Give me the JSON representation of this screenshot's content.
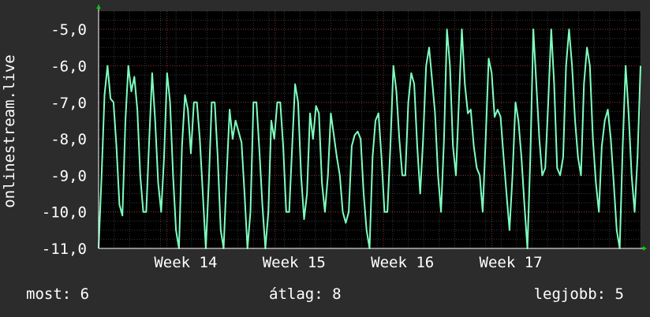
{
  "chart_data": {
    "type": "line",
    "ylabel": "onlinestream.live",
    "ylim": [
      -11.0,
      -4.5
    ],
    "yticks": [
      {
        "value": -5.0,
        "label": "-5,0"
      },
      {
        "value": -6.0,
        "label": "-6,0"
      },
      {
        "value": -7.0,
        "label": "-7,0"
      },
      {
        "value": -8.0,
        "label": "-8,0"
      },
      {
        "value": -9.0,
        "label": "-9,0"
      },
      {
        "value": -10.0,
        "label": "-10,0"
      },
      {
        "value": -11.0,
        "label": "-11,0"
      }
    ],
    "xlim": [
      0,
      175
    ],
    "xticks": [
      {
        "value": 22,
        "label": "Week 14"
      },
      {
        "value": 57,
        "label": "Week 15"
      },
      {
        "value": 92,
        "label": "Week 16"
      },
      {
        "value": 127,
        "label": "Week 17"
      }
    ],
    "grid": true,
    "series": [
      {
        "color": "#7fffbf",
        "values": [
          -11.0,
          -9.0,
          -6.8,
          -6.0,
          -6.9,
          -7.0,
          -8.2,
          -9.8,
          -10.1,
          -7.5,
          -6.0,
          -6.7,
          -6.3,
          -7.2,
          -9.0,
          -10.0,
          -10.0,
          -8.0,
          -6.2,
          -7.5,
          -9.2,
          -10.0,
          -8.5,
          -6.2,
          -7.0,
          -9.0,
          -10.5,
          -11.0,
          -8.2,
          -6.8,
          -7.2,
          -8.4,
          -7.0,
          -7.0,
          -8.0,
          -9.5,
          -11.0,
          -9.2,
          -7.0,
          -7.0,
          -8.5,
          -10.5,
          -11.0,
          -9.0,
          -7.2,
          -8.0,
          -7.5,
          -7.8,
          -8.1,
          -9.5,
          -11.0,
          -10.0,
          -7.0,
          -7.0,
          -8.3,
          -9.8,
          -11.0,
          -10.0,
          -7.5,
          -8.0,
          -7.0,
          -7.0,
          -8.2,
          -10.0,
          -10.0,
          -8.2,
          -6.5,
          -7.0,
          -9.0,
          -10.2,
          -9.5,
          -7.3,
          -8.0,
          -7.1,
          -7.3,
          -9.2,
          -10.0,
          -9.0,
          -7.3,
          -7.9,
          -8.5,
          -9.0,
          -10.0,
          -10.3,
          -10.0,
          -8.2,
          -7.9,
          -7.8,
          -8.0,
          -9.5,
          -10.5,
          -11.0,
          -8.5,
          -7.5,
          -7.3,
          -8.5,
          -10.0,
          -10.0,
          -8.2,
          -6.0,
          -6.7,
          -8.0,
          -9.0,
          -9.0,
          -7.0,
          -6.2,
          -6.5,
          -8.2,
          -9.5,
          -8.0,
          -6.0,
          -5.5,
          -6.4,
          -7.3,
          -9.0,
          -10.0,
          -8.0,
          -5.0,
          -6.0,
          -8.2,
          -9.0,
          -7.0,
          -5.0,
          -6.5,
          -7.3,
          -7.2,
          -8.2,
          -8.8,
          -9.0,
          -10.0,
          -8.0,
          -5.8,
          -6.2,
          -7.4,
          -7.2,
          -7.4,
          -8.5,
          -9.5,
          -10.5,
          -9.0,
          -7.0,
          -7.5,
          -8.5,
          -9.8,
          -11.0,
          -8.5,
          -5.0,
          -6.5,
          -8.0,
          -9.0,
          -8.8,
          -7.0,
          -5.0,
          -6.5,
          -8.8,
          -9.0,
          -8.5,
          -6.0,
          -5.0,
          -6.0,
          -7.5,
          -8.5,
          -9.0,
          -6.5,
          -5.5,
          -6.0,
          -8.0,
          -9.2,
          -10.0,
          -8.2,
          -7.5,
          -7.2,
          -8.0,
          -9.2,
          -10.5,
          -11.0,
          -8.2,
          -6.0,
          -7.3,
          -9.0,
          -10.0,
          -8.5,
          -6.0
        ]
      }
    ]
  },
  "footer": {
    "now": "most: 6",
    "avg": "átlag: 8",
    "best": "legjobb: 5"
  }
}
